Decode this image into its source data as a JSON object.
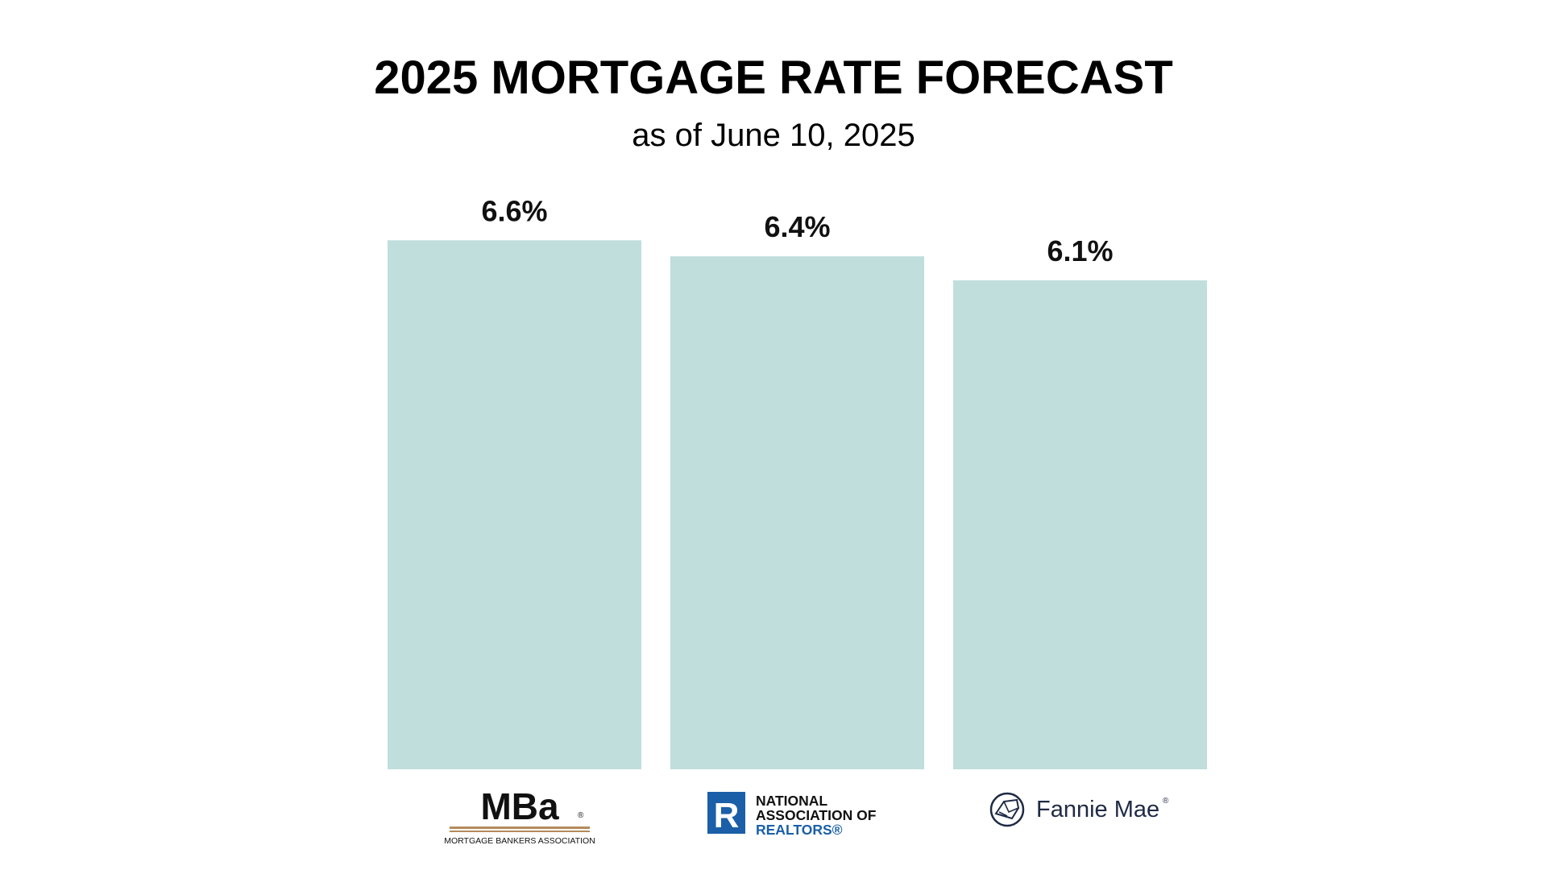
{
  "colors": {
    "bar": "#bfdedc",
    "text": "#111111",
    "nar_blue": "#1a5fa8",
    "mba_bar_tan": "#b48a5a",
    "fannie_navy": "#1f2a44"
  },
  "chart_data": {
    "type": "bar",
    "title": "2025 MORTGAGE RATE FORECAST",
    "subtitle": "as of June 10, 2025",
    "categories": [
      "MBA",
      "NATIONAL ASSOCIATION OF REALTORS",
      "Fannie Mae"
    ],
    "values": [
      6.6,
      6.4,
      6.1
    ],
    "value_labels": [
      "6.6%",
      "6.4%",
      "6.1%"
    ],
    "ylabel": "",
    "xlabel": "",
    "grid": false,
    "legend": "none"
  },
  "logos": {
    "mba": {
      "mark": "MBa",
      "registered": "®",
      "subtext": "MORTGAGE BANKERS ASSOCIATION"
    },
    "nar": {
      "mark_letter": "R",
      "line1": "NATIONAL",
      "line2": "ASSOCIATION OF",
      "line3": "REALTORS®"
    },
    "fannie": {
      "icon": "house-roof-icon",
      "name": "Fannie Mae",
      "registered": "®"
    }
  }
}
